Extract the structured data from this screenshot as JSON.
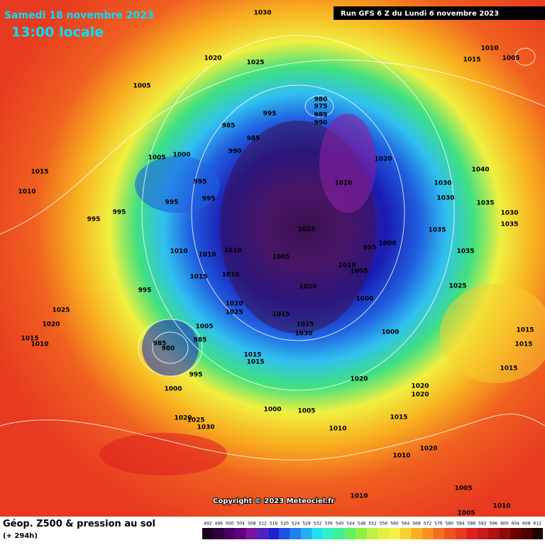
{
  "header": {
    "date": "Samedi 18 novembre 2023",
    "time": "13:00 locale",
    "run": "Run GFS 6 Z du Lundi 6 novembre 2023"
  },
  "map": {
    "copyright": "Copyright © 2023 Meteociel.fr",
    "pressure_labels": [
      "1030",
      "1010",
      "1015",
      "1005",
      "1020",
      "1025",
      "1005",
      "980",
      "975",
      "985",
      "990",
      "995",
      "985",
      "985",
      "990",
      "1005",
      "1000",
      "1020",
      "1015",
      "1010",
      "995",
      "995",
      "995",
      "995",
      "995",
      "1020",
      "1030",
      "1030",
      "1040",
      "1035",
      "1030",
      "1035",
      "1025",
      "1035",
      "1000",
      "995",
      "1035",
      "1005",
      "1010",
      "1010",
      "1010",
      "1010",
      "1005",
      "1015",
      "1015",
      "1025",
      "995",
      "1020",
      "1000",
      "1025",
      "1020",
      "1025",
      "1015",
      "1020",
      "1015",
      "1010",
      "1030",
      "1025",
      "1000",
      "1005",
      "985",
      "985",
      "980",
      "1015",
      "1015",
      "1015",
      "1015",
      "995",
      "1015",
      "1020",
      "1020",
      "1020",
      "1000",
      "1000",
      "1005",
      "1015",
      "1020",
      "1025",
      "1030",
      "1010",
      "1020",
      "1010",
      "1005",
      "1010",
      "1010",
      "1005"
    ]
  },
  "footer": {
    "title": "Géop. Z500 & pression au sol",
    "lead": "(+ 294h)",
    "scale": [
      492,
      496,
      500,
      504,
      508,
      512,
      516,
      520,
      524,
      528,
      532,
      536,
      540,
      544,
      548,
      552,
      556,
      560,
      564,
      568,
      572,
      576,
      580,
      584,
      588,
      592,
      596,
      600,
      604,
      608,
      612
    ]
  }
}
